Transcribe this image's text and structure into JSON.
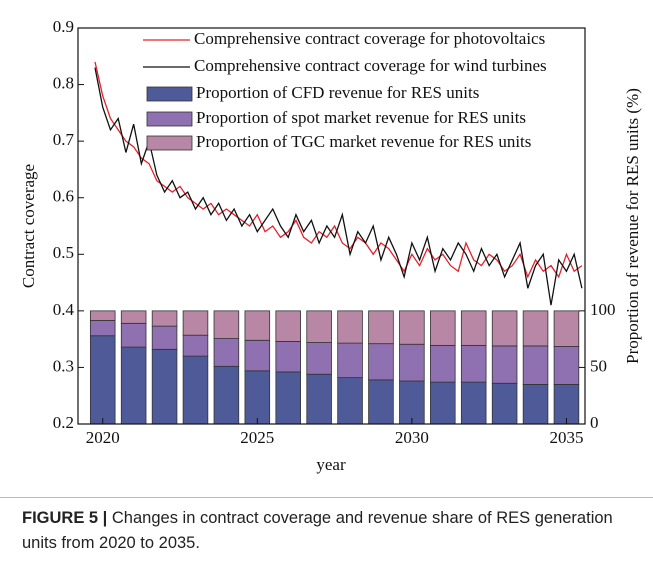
{
  "chart_data": [
    {
      "type": "line",
      "ylabel": "Contract coverage",
      "xlabel": "year",
      "xlim": [
        2019.2,
        2035.6
      ],
      "xticks": [
        2020,
        2025,
        2030,
        2035
      ],
      "ylim": [
        0.2,
        0.9
      ],
      "yticks": [
        0.2,
        0.3,
        0.4,
        0.5,
        0.6,
        0.7,
        0.8,
        0.9
      ],
      "x": [
        2019.75,
        2020,
        2020.25,
        2020.5,
        2020.75,
        2021,
        2021.25,
        2021.5,
        2021.75,
        2022,
        2022.25,
        2022.5,
        2022.75,
        2023,
        2023.25,
        2023.5,
        2023.75,
        2024,
        2024.25,
        2024.5,
        2024.75,
        2025,
        2025.25,
        2025.5,
        2025.75,
        2026,
        2026.25,
        2026.5,
        2026.75,
        2027,
        2027.25,
        2027.5,
        2027.75,
        2028,
        2028.25,
        2028.5,
        2028.75,
        2029,
        2029.25,
        2029.5,
        2029.75,
        2030,
        2030.25,
        2030.5,
        2030.75,
        2031,
        2031.25,
        2031.5,
        2031.75,
        2032,
        2032.25,
        2032.5,
        2032.75,
        2033,
        2033.25,
        2033.5,
        2033.75,
        2034,
        2034.25,
        2034.5,
        2034.75,
        2035,
        2035.25,
        2035.5
      ],
      "series": [
        {
          "name": "Comprehensive contract coverage for photovoltaics",
          "color": "#e8202a",
          "values": [
            0.84,
            0.78,
            0.74,
            0.72,
            0.7,
            0.69,
            0.67,
            0.66,
            0.63,
            0.62,
            0.61,
            0.62,
            0.6,
            0.59,
            0.58,
            0.59,
            0.57,
            0.58,
            0.57,
            0.56,
            0.55,
            0.57,
            0.54,
            0.55,
            0.53,
            0.54,
            0.56,
            0.53,
            0.52,
            0.54,
            0.53,
            0.55,
            0.52,
            0.51,
            0.53,
            0.52,
            0.5,
            0.52,
            0.51,
            0.49,
            0.47,
            0.5,
            0.48,
            0.51,
            0.49,
            0.5,
            0.48,
            0.47,
            0.52,
            0.49,
            0.48,
            0.5,
            0.49,
            0.47,
            0.48,
            0.5,
            0.46,
            0.49,
            0.47,
            0.48,
            0.46,
            0.5,
            0.47,
            0.48
          ]
        },
        {
          "name": "Comprehensive contract coverage for wind turbines",
          "color": "#111111",
          "values": [
            0.83,
            0.76,
            0.72,
            0.74,
            0.68,
            0.73,
            0.66,
            0.7,
            0.64,
            0.61,
            0.63,
            0.6,
            0.61,
            0.58,
            0.6,
            0.57,
            0.59,
            0.56,
            0.58,
            0.55,
            0.57,
            0.54,
            0.56,
            0.58,
            0.55,
            0.53,
            0.57,
            0.54,
            0.56,
            0.52,
            0.55,
            0.53,
            0.57,
            0.5,
            0.54,
            0.52,
            0.55,
            0.49,
            0.53,
            0.5,
            0.46,
            0.52,
            0.49,
            0.53,
            0.47,
            0.51,
            0.49,
            0.52,
            0.5,
            0.47,
            0.51,
            0.48,
            0.5,
            0.46,
            0.49,
            0.52,
            0.44,
            0.48,
            0.5,
            0.41,
            0.49,
            0.47,
            0.5,
            0.44
          ]
        }
      ]
    },
    {
      "type": "stacked_bar",
      "y2label": "Proportion of revenue for RES units (%)",
      "y2lim": [
        0,
        350
      ],
      "y2ticks": [
        0,
        50,
        100
      ],
      "x": [
        2020,
        2021,
        2022,
        2023,
        2024,
        2025,
        2026,
        2027,
        2028,
        2029,
        2030,
        2031,
        2032,
        2033,
        2034,
        2035
      ],
      "series": [
        {
          "name": "Proportion of CFD revenue for RES units",
          "color": "#4f5b99",
          "axis": "y2",
          "values": [
            78,
            68,
            66,
            60,
            51,
            47,
            46,
            44,
            41,
            39,
            38,
            37,
            37,
            36,
            35,
            35
          ]
        },
        {
          "name": "Proportion of spot market revenue for RES units",
          "color": "#8f70b0",
          "axis": "y2",
          "values": [
            13.5,
            21,
            20.5,
            18.5,
            24.5,
            27,
            27,
            28,
            30.5,
            32,
            32.5,
            32.5,
            32.5,
            33,
            34,
            33.5
          ]
        },
        {
          "name": "Proportion of TGC market revenue for RES units",
          "color": "#b987a6",
          "axis": "y2",
          "values": [
            8.5,
            11,
            13.5,
            21.5,
            24.5,
            26,
            27,
            28,
            28.5,
            29,
            29.5,
            30.5,
            30.5,
            31,
            31,
            31.5
          ]
        }
      ]
    }
  ],
  "caption": {
    "label": "FIGURE 5 |",
    "text": "Changes in contract coverage and revenue share of RES generation units from 2020 to 2035."
  }
}
